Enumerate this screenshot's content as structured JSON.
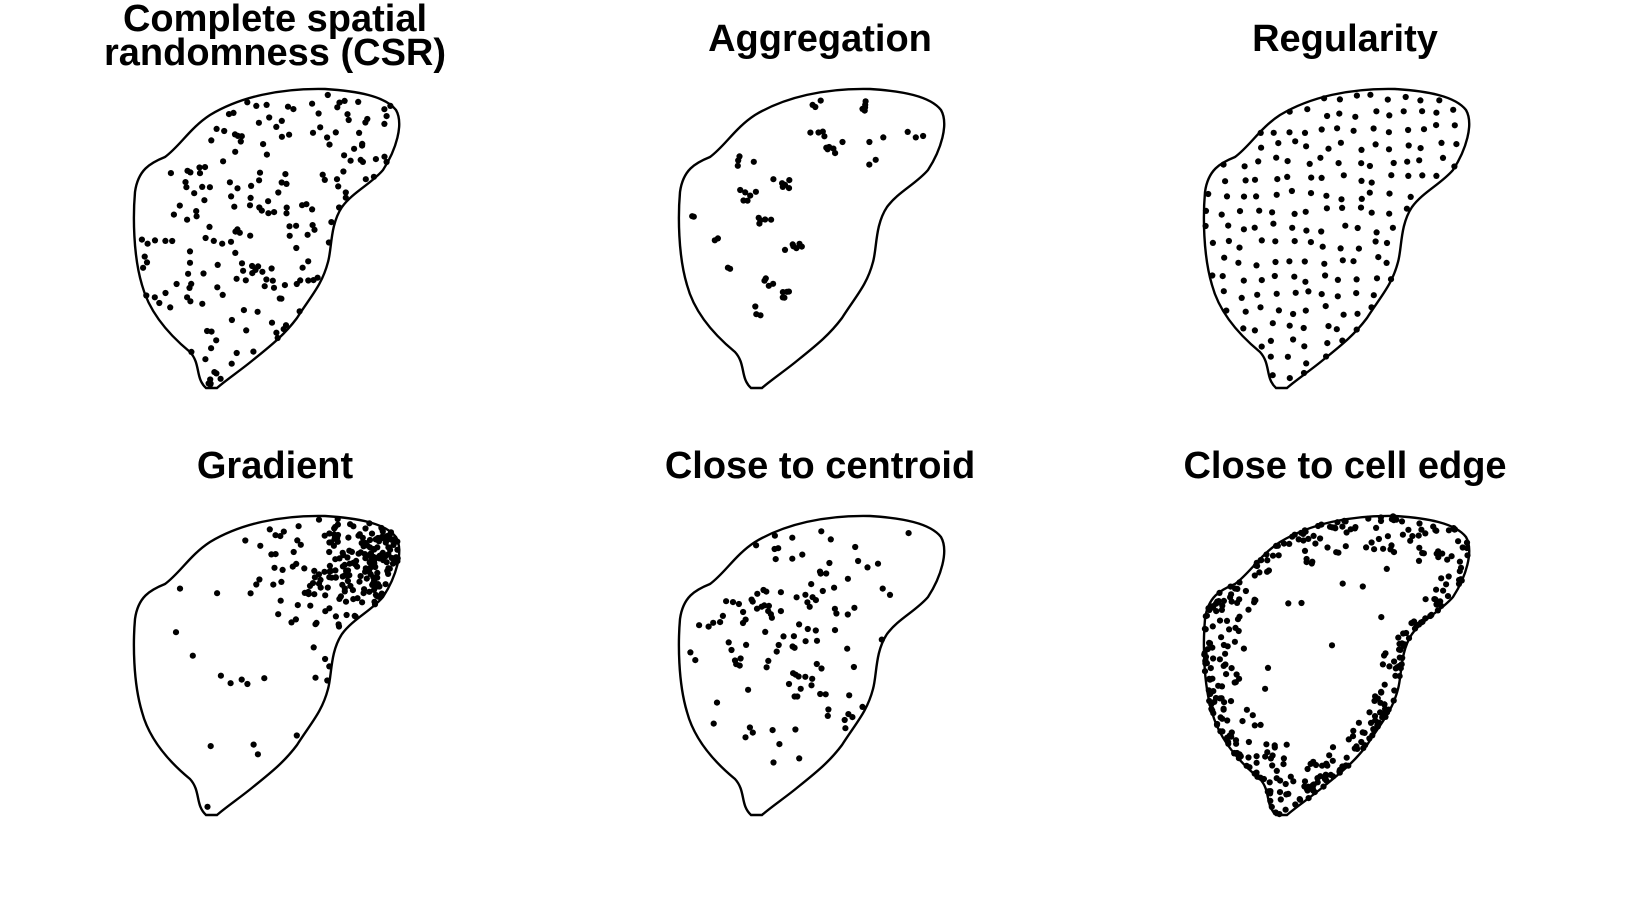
{
  "figure": {
    "panels": [
      {
        "id": "csr",
        "title": "Complete spatial randomness (CSR)",
        "pattern": "csr"
      },
      {
        "id": "aggregation",
        "title": "Aggregation",
        "pattern": "aggregation"
      },
      {
        "id": "regularity",
        "title": "Regularity",
        "pattern": "regularity"
      },
      {
        "id": "gradient",
        "title": "Gradient",
        "pattern": "gradient"
      },
      {
        "id": "centroid",
        "title": "Close to centroid",
        "pattern": "centroid"
      },
      {
        "id": "edge",
        "title": "Close to cell edge",
        "pattern": "edge"
      }
    ],
    "point_color": "#000000",
    "outline_color": "#000000",
    "background": "#ffffff"
  }
}
